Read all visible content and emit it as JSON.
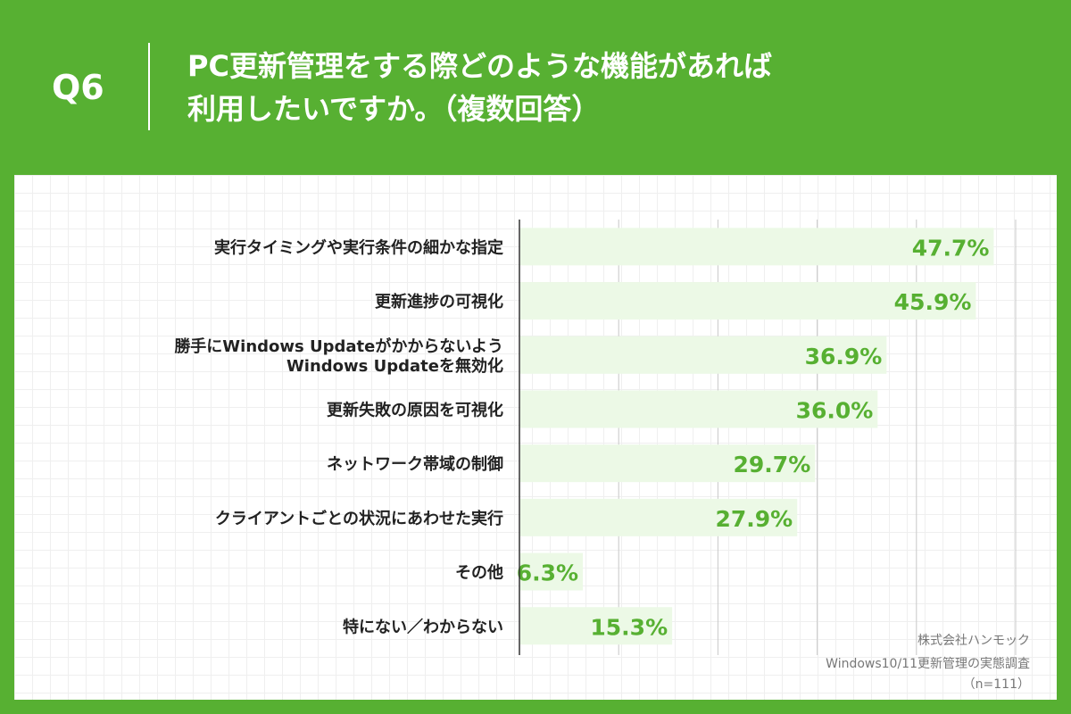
{
  "header": {
    "question_number": "Q6",
    "title_line1": "PC更新管理をする際どのような機能があれば",
    "title_line2": "利用したいですか。（複数回答）"
  },
  "colors": {
    "background": "#57b032",
    "bar_fill": "#ecf9e6",
    "value_text": "#57b032",
    "grid_line": "#c8c8c8"
  },
  "chart_data": {
    "type": "bar",
    "orientation": "horizontal",
    "title": "",
    "xlabel": "",
    "ylabel": "",
    "xlim": [
      0,
      50
    ],
    "categories": [
      [
        "実行タイミングや実行条件の細かな指定"
      ],
      [
        "更新進捗の可視化"
      ],
      [
        "勝手にWindows Updateがかからないよう",
        "Windows Updateを無効化"
      ],
      [
        "更新失敗の原因を可視化"
      ],
      [
        "ネットワーク帯域の制御"
      ],
      [
        "クライアントごとの状況にあわせた実行"
      ],
      [
        "その他"
      ],
      [
        "特にない／わからない"
      ]
    ],
    "values": [
      47.7,
      45.9,
      36.9,
      36.0,
      29.7,
      27.9,
      6.3,
      15.3
    ],
    "value_labels": [
      "47.7%",
      "45.9%",
      "36.9%",
      "36.0%",
      "29.7%",
      "27.9%",
      "6.3%",
      "15.3%"
    ]
  },
  "footnote": {
    "company": "株式会社ハンモック",
    "survey": "Windows10/11更新管理の実態調査",
    "sample": "（n=111）"
  }
}
